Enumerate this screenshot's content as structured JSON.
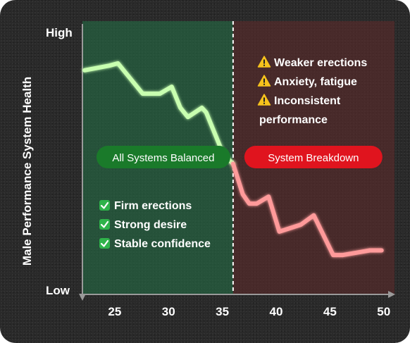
{
  "chart_data": {
    "type": "line",
    "ylabel": "Male Performance System Health",
    "xlabel": "",
    "y_tick_labels": {
      "top": "High",
      "bottom": "Low"
    },
    "xlim": [
      22,
      51
    ],
    "ylim": [
      0,
      100
    ],
    "x_ticks": [
      25,
      30,
      35,
      40,
      45,
      50
    ],
    "threshold_x": 36,
    "series": [
      {
        "segment": "balanced",
        "color": "#c8ffb0",
        "points": [
          [
            22.2,
            88
          ],
          [
            24.5,
            90
          ],
          [
            25.3,
            91
          ],
          [
            27.6,
            78
          ],
          [
            29.2,
            78
          ],
          [
            30.3,
            81
          ],
          [
            31.1,
            72
          ],
          [
            31.8,
            68
          ],
          [
            33.1,
            72
          ],
          [
            33.5,
            70
          ],
          [
            35.1,
            52
          ],
          [
            36.0,
            48
          ]
        ]
      },
      {
        "segment": "breakdown",
        "color": "#ff9a9a",
        "points": [
          [
            36.0,
            48
          ],
          [
            36.9,
            35
          ],
          [
            37.5,
            31
          ],
          [
            38.2,
            31
          ],
          [
            39.3,
            34
          ],
          [
            40.3,
            19
          ],
          [
            42.3,
            22
          ],
          [
            43.5,
            26
          ],
          [
            45.3,
            9
          ],
          [
            46.2,
            9
          ],
          [
            48.7,
            11
          ],
          [
            49.8,
            11
          ]
        ]
      }
    ],
    "regions": [
      {
        "label": "All Systems Balanced",
        "color": "#236a43",
        "badge_color": "#1a7a2a",
        "bullets": [
          "Firm erections",
          "Strong desire",
          "Stable confidence"
        ],
        "bullet_marker": "✅"
      },
      {
        "label": "System Breakdown",
        "color": "#5a2a2a",
        "badge_color": "#e0141e",
        "bullets": [
          "Weaker erections",
          "Anxiety, fatigue",
          "Inconsistent",
          "performance"
        ],
        "bullet_marker": "⚠️"
      }
    ]
  }
}
